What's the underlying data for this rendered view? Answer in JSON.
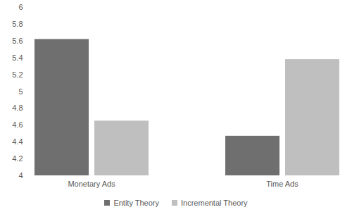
{
  "chart_data": {
    "type": "bar",
    "categories": [
      "Monetary Ads",
      "Time Ads"
    ],
    "series": [
      {
        "name": "Entity Theory",
        "color": "#6f6f6f",
        "values": [
          5.62,
          4.47
        ]
      },
      {
        "name": "Incremental Theory",
        "color": "#bfbfbf",
        "values": [
          4.65,
          5.38
        ]
      }
    ],
    "ylim": [
      4,
      6
    ],
    "yticks": [
      4,
      4.2,
      4.4,
      4.6,
      4.8,
      5,
      5.2,
      5.4,
      5.6,
      5.8,
      6
    ],
    "grid": false,
    "legend": "bottom"
  }
}
